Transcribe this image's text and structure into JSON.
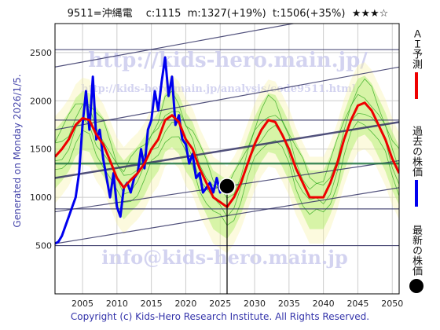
{
  "title": "9511=沖縄電　 c:1115  m:1327(+19%)  t:1506(+35%)  ★★★☆",
  "generated": "Generated on Monday 2026/1/5.",
  "copyright": "Copyright (c) Kids-Hero Research Institute. All Rights Reserved.",
  "watermarks": {
    "url_main": "http://kids-hero.main.jp/",
    "url_sub": "http://kids-hero.main.jp/analysis/code9511.html",
    "email": "info@kids-hero.main.jp"
  },
  "legend": {
    "ai_forecast": "ＡＩ予測",
    "past_price": "過去の株価",
    "latest_price": "最新の株価"
  },
  "colors": {
    "ai_forecast": "#ee0000",
    "past_price": "#0000ee",
    "latest_price": "#000000",
    "band_fill": "#99ee66",
    "band_line": "#33aa22",
    "band_yellow": "#f5f0a0",
    "trend_line": "#333366",
    "grid": "#cccccc"
  },
  "chart_data": {
    "type": "line",
    "xlim": [
      2001,
      2051
    ],
    "ylim": [
      0,
      2800
    ],
    "x_ticks": [
      2005,
      2010,
      2015,
      2020,
      2025,
      2030,
      2035,
      2040,
      2045,
      2050
    ],
    "y_ticks": [
      500,
      1000,
      1500,
      2000,
      2500
    ],
    "grid": true,
    "legend_position": "right",
    "series": [
      {
        "name": "過去の株価",
        "x": [
          2001.0,
          2001.5,
          2002.0,
          2002.5,
          2003.0,
          2003.5,
          2004.0,
          2004.5,
          2005.0,
          2005.5,
          2006.0,
          2006.5,
          2007.0,
          2007.5,
          2008.0,
          2008.5,
          2009.0,
          2009.5,
          2010.0,
          2010.5,
          2011.0,
          2011.5,
          2012.0,
          2012.5,
          2013.0,
          2013.5,
          2014.0,
          2014.5,
          2015.0,
          2015.5,
          2016.0,
          2016.5,
          2017.0,
          2017.5,
          2018.0,
          2018.5,
          2019.0,
          2019.5,
          2020.0,
          2020.5,
          2021.0,
          2021.5,
          2022.0,
          2022.5,
          2023.0,
          2023.5,
          2024.0,
          2024.5,
          2025.0,
          2025.5,
          2026.0
        ],
        "y": [
          520,
          540,
          600,
          700,
          800,
          900,
          1000,
          1250,
          1750,
          2100,
          1700,
          2250,
          1600,
          1700,
          1400,
          1200,
          1000,
          1250,
          900,
          800,
          1100,
          1150,
          1050,
          1200,
          1250,
          1500,
          1300,
          1700,
          1800,
          2100,
          1900,
          2200,
          2450,
          2050,
          2250,
          1750,
          1850,
          1600,
          1550,
          1350,
          1450,
          1200,
          1250,
          1050,
          1100,
          1150,
          1050,
          1200,
          1050,
          1150,
          1115
        ]
      },
      {
        "name": "ＡＩ予測",
        "x": [
          2001,
          2002,
          2003,
          2004,
          2005,
          2006,
          2007,
          2008,
          2009,
          2010,
          2011,
          2012,
          2013,
          2014,
          2015,
          2016,
          2017,
          2018,
          2019,
          2020,
          2021,
          2022,
          2023,
          2024,
          2025,
          2026,
          2027,
          2028,
          2029,
          2030,
          2031,
          2032,
          2033,
          2034,
          2035,
          2036,
          2037,
          2038,
          2039,
          2040,
          2041,
          2042,
          2043,
          2044,
          2045,
          2046,
          2047,
          2048,
          2049,
          2050,
          2051
        ],
        "y": [
          1420,
          1500,
          1600,
          1750,
          1820,
          1800,
          1650,
          1550,
          1380,
          1200,
          1100,
          1180,
          1250,
          1350,
          1500,
          1600,
          1800,
          1850,
          1780,
          1600,
          1500,
          1300,
          1150,
          1000,
          950,
          900,
          1000,
          1150,
          1350,
          1550,
          1700,
          1800,
          1780,
          1650,
          1500,
          1300,
          1150,
          1000,
          1000,
          1000,
          1150,
          1350,
          1600,
          1800,
          1950,
          1980,
          1900,
          1750,
          1600,
          1400,
          1250
        ]
      }
    ],
    "latest": {
      "x": 2026,
      "y": 1115
    }
  }
}
